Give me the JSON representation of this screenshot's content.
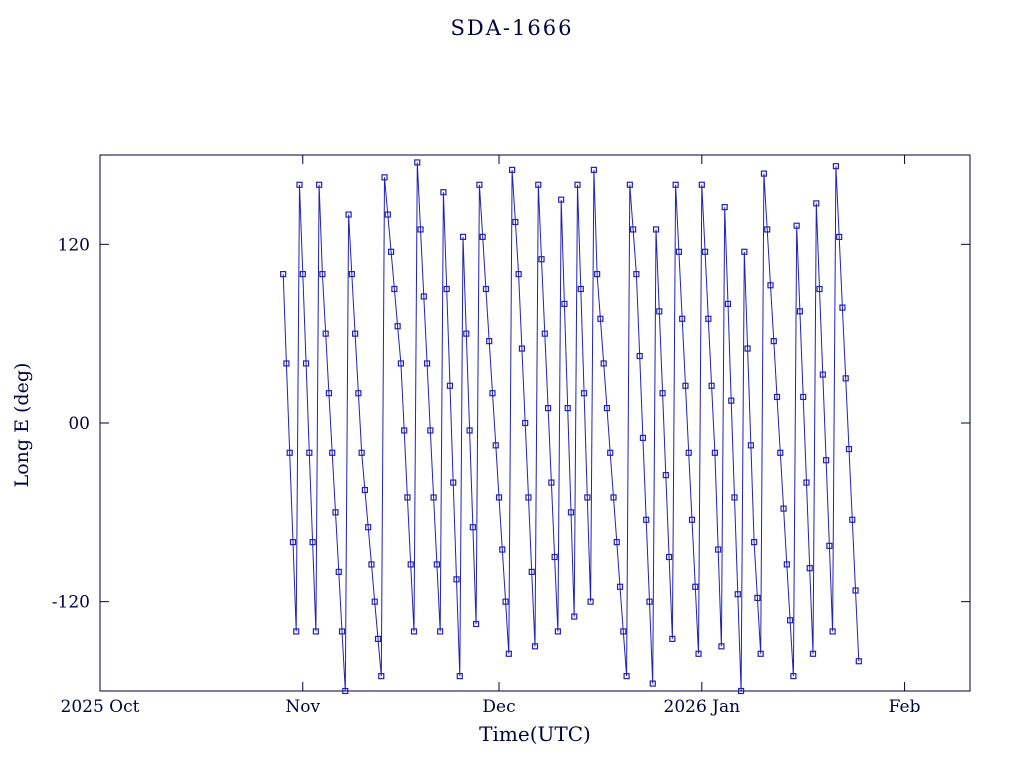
{
  "title": "SDA-1666",
  "colors": {
    "axis": "#00003c",
    "text": "#00003c",
    "data": "#2222b2",
    "background": "#ffffff"
  },
  "chart_data": {
    "type": "line",
    "title": "SDA-1666",
    "xlabel": "Time(UTC)",
    "ylabel": "Long E (deg)",
    "x_unit": "days since 2025 Oct 1",
    "xlim_days": [
      0,
      133
    ],
    "ylim": [
      -180,
      180
    ],
    "grid": false,
    "legend": "none",
    "marker": "open-square",
    "xticks": [
      {
        "day": 0,
        "label": "2025 Oct"
      },
      {
        "day": 31,
        "label": "Nov"
      },
      {
        "day": 61,
        "label": "Dec"
      },
      {
        "day": 92,
        "label": "2026 Jan"
      },
      {
        "day": 123,
        "label": "Feb"
      }
    ],
    "yticks": [
      {
        "value": 120,
        "label": "120"
      },
      {
        "value": 0,
        "label": "00"
      },
      {
        "value": -120,
        "label": "-120"
      }
    ],
    "points": [
      [
        28,
        100
      ],
      [
        28.5,
        40
      ],
      [
        29,
        -20
      ],
      [
        29.5,
        -80
      ],
      [
        30,
        -140
      ],
      [
        30.5,
        160
      ],
      [
        31,
        100
      ],
      [
        31.5,
        40
      ],
      [
        32,
        -20
      ],
      [
        32.5,
        -80
      ],
      [
        33,
        -140
      ],
      [
        33.5,
        160
      ],
      [
        34,
        100
      ],
      [
        34.5,
        60
      ],
      [
        35,
        20
      ],
      [
        35.5,
        -20
      ],
      [
        36,
        -60
      ],
      [
        36.5,
        -100
      ],
      [
        37,
        -140
      ],
      [
        37.5,
        -180
      ],
      [
        38,
        140
      ],
      [
        38.5,
        100
      ],
      [
        39,
        60
      ],
      [
        39.5,
        20
      ],
      [
        40,
        -20
      ],
      [
        40.5,
        -45
      ],
      [
        41,
        -70
      ],
      [
        41.5,
        -95
      ],
      [
        42,
        -120
      ],
      [
        42.5,
        -145
      ],
      [
        43,
        -170
      ],
      [
        43.5,
        165
      ],
      [
        44,
        140
      ],
      [
        44.5,
        115
      ],
      [
        45,
        90
      ],
      [
        45.5,
        65
      ],
      [
        46,
        40
      ],
      [
        46.5,
        -5
      ],
      [
        47,
        -50
      ],
      [
        47.5,
        -95
      ],
      [
        48,
        -140
      ],
      [
        48.5,
        175
      ],
      [
        49,
        130
      ],
      [
        49.5,
        85
      ],
      [
        50,
        40
      ],
      [
        50.5,
        -5
      ],
      [
        51,
        -50
      ],
      [
        51.5,
        -95
      ],
      [
        52,
        -140
      ],
      [
        52.5,
        155
      ],
      [
        53,
        90
      ],
      [
        53.5,
        25
      ],
      [
        54,
        -40
      ],
      [
        54.5,
        -105
      ],
      [
        55,
        -170
      ],
      [
        55.5,
        125
      ],
      [
        56,
        60
      ],
      [
        56.5,
        -5
      ],
      [
        57,
        -70
      ],
      [
        57.5,
        -135
      ],
      [
        58,
        160
      ],
      [
        58.5,
        125
      ],
      [
        59,
        90
      ],
      [
        59.5,
        55
      ],
      [
        60,
        20
      ],
      [
        60.5,
        -15
      ],
      [
        61,
        -50
      ],
      [
        61.5,
        -85
      ],
      [
        62,
        -120
      ],
      [
        62.5,
        -155
      ],
      [
        63,
        170
      ],
      [
        63.5,
        135
      ],
      [
        64,
        100
      ],
      [
        64.5,
        50
      ],
      [
        65,
        0
      ],
      [
        65.5,
        -50
      ],
      [
        66,
        -100
      ],
      [
        66.5,
        -150
      ],
      [
        67,
        160
      ],
      [
        67.5,
        110
      ],
      [
        68,
        60
      ],
      [
        68.5,
        10
      ],
      [
        69,
        -40
      ],
      [
        69.5,
        -90
      ],
      [
        70,
        -140
      ],
      [
        70.5,
        150
      ],
      [
        71,
        80
      ],
      [
        71.5,
        10
      ],
      [
        72,
        -60
      ],
      [
        72.5,
        -130
      ],
      [
        73,
        160
      ],
      [
        73.5,
        90
      ],
      [
        74,
        20
      ],
      [
        74.5,
        -50
      ],
      [
        75,
        -120
      ],
      [
        75.5,
        170
      ],
      [
        76,
        100
      ],
      [
        76.5,
        70
      ],
      [
        77,
        40
      ],
      [
        77.5,
        10
      ],
      [
        78,
        -20
      ],
      [
        78.5,
        -50
      ],
      [
        79,
        -80
      ],
      [
        79.5,
        -110
      ],
      [
        80,
        -140
      ],
      [
        80.5,
        -170
      ],
      [
        81,
        160
      ],
      [
        81.5,
        130
      ],
      [
        82,
        100
      ],
      [
        82.5,
        45
      ],
      [
        83,
        -10
      ],
      [
        83.5,
        -65
      ],
      [
        84,
        -120
      ],
      [
        84.5,
        -175
      ],
      [
        85,
        130
      ],
      [
        85.5,
        75
      ],
      [
        86,
        20
      ],
      [
        86.5,
        -35
      ],
      [
        87,
        -90
      ],
      [
        87.5,
        -145
      ],
      [
        88,
        160
      ],
      [
        88.5,
        115
      ],
      [
        89,
        70
      ],
      [
        89.5,
        25
      ],
      [
        90,
        -20
      ],
      [
        90.5,
        -65
      ],
      [
        91,
        -110
      ],
      [
        91.5,
        -155
      ],
      [
        92,
        160
      ],
      [
        92.5,
        115
      ],
      [
        93,
        70
      ],
      [
        93.5,
        25
      ],
      [
        94,
        -20
      ],
      [
        94.5,
        -85
      ],
      [
        95,
        -150
      ],
      [
        95.5,
        145
      ],
      [
        96,
        80
      ],
      [
        96.5,
        15
      ],
      [
        97,
        -50
      ],
      [
        97.5,
        -115
      ],
      [
        98,
        -180
      ],
      [
        98.5,
        115
      ],
      [
        99,
        50
      ],
      [
        99.5,
        -15
      ],
      [
        100,
        -80
      ],
      [
        100.5,
        -117.5
      ],
      [
        101,
        -155
      ],
      [
        101.5,
        167.5
      ],
      [
        102,
        130
      ],
      [
        102.5,
        92.5
      ],
      [
        103,
        55
      ],
      [
        103.5,
        17.5
      ],
      [
        104,
        -20
      ],
      [
        104.5,
        -57.5
      ],
      [
        105,
        -95
      ],
      [
        105.5,
        -132.5
      ],
      [
        106,
        -170
      ],
      [
        106.5,
        132.5
      ],
      [
        107,
        75
      ],
      [
        107.5,
        17.5
      ],
      [
        108,
        -40
      ],
      [
        108.5,
        -97.5
      ],
      [
        109,
        -155
      ],
      [
        109.5,
        147.5
      ],
      [
        110,
        90
      ],
      [
        110.5,
        32.5
      ],
      [
        111,
        -25
      ],
      [
        111.5,
        -82.5
      ],
      [
        112,
        -140
      ],
      [
        112.5,
        172.5
      ],
      [
        113,
        125
      ],
      [
        113.5,
        77.5
      ],
      [
        114,
        30
      ],
      [
        114.5,
        -17.5
      ],
      [
        115,
        -65
      ],
      [
        115.5,
        -112.5
      ],
      [
        116,
        -160
      ]
    ]
  }
}
